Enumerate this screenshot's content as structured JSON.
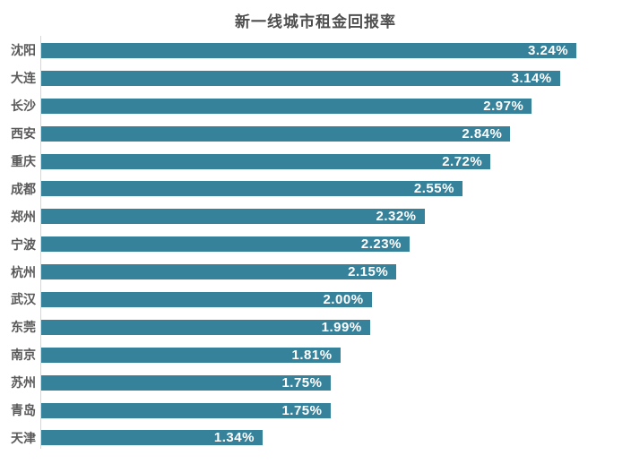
{
  "chart_data": {
    "type": "bar",
    "orientation": "horizontal",
    "title": "新一线城市租金回报率",
    "categories": [
      "沈阳",
      "大连",
      "长沙",
      "西安",
      "重庆",
      "成都",
      "郑州",
      "宁波",
      "杭州",
      "武汉",
      "东莞",
      "南京",
      "苏州",
      "青岛",
      "天津"
    ],
    "values": [
      3.24,
      3.14,
      2.97,
      2.84,
      2.72,
      2.55,
      2.32,
      2.23,
      2.15,
      2.0,
      1.99,
      1.81,
      1.75,
      1.75,
      1.34
    ],
    "value_labels": [
      "3.24%",
      "3.14%",
      "2.97%",
      "2.84%",
      "2.72%",
      "2.55%",
      "2.32%",
      "2.23%",
      "2.15%",
      "2.00%",
      "1.99%",
      "1.81%",
      "1.75%",
      "1.75%",
      "1.34%"
    ],
    "xlabel": "",
    "ylabel": "",
    "xlim": [
      0,
      3.5
    ],
    "grid": "off",
    "legend": "none",
    "value_label_position": "inside-end",
    "colors": {
      "bar": "#36829B",
      "category_label": "#595959",
      "value_label": "#ffffff",
      "title": "#4f4f4f",
      "axis_line": "#d6d6d6",
      "background": "#ffffff"
    }
  }
}
